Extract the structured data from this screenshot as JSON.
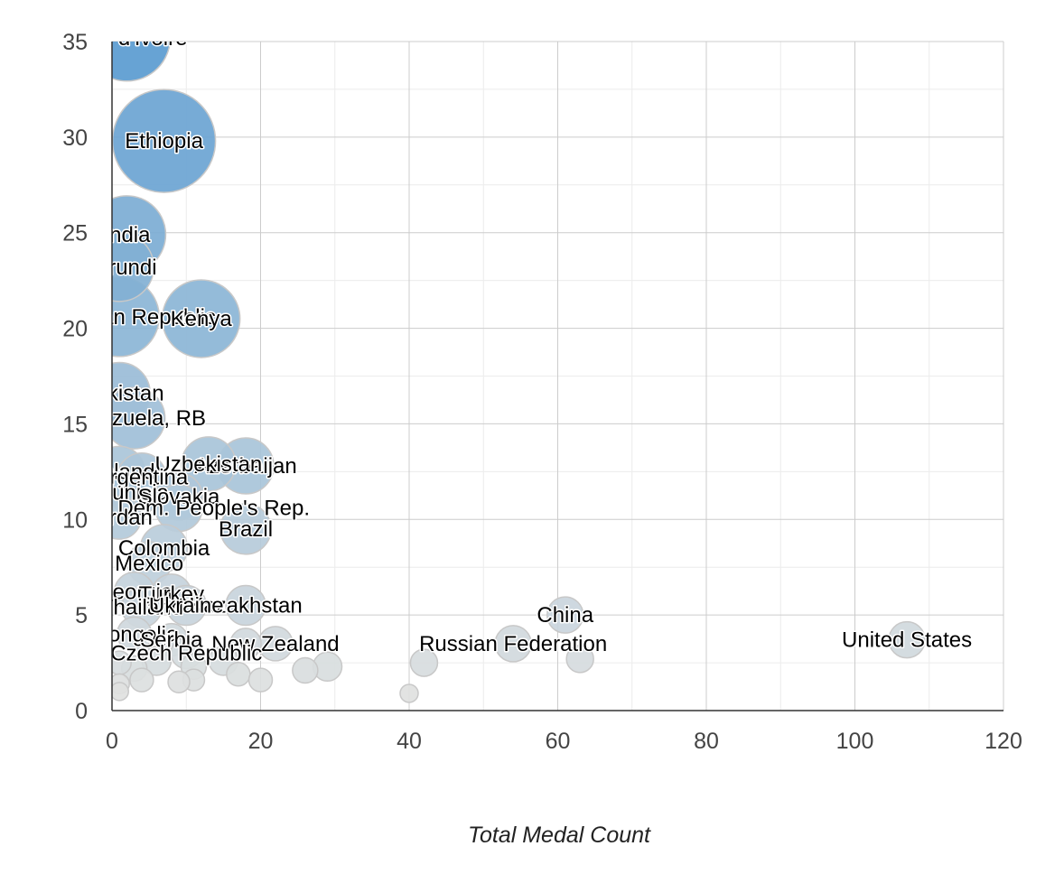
{
  "chart_data": {
    "type": "scatter",
    "variant": "bubble",
    "title": "",
    "xlabel": "Total Medal Count",
    "ylabel": "",
    "xlim": [
      0,
      120
    ],
    "ylim": [
      0,
      35
    ],
    "x_ticks": [
      0,
      20,
      40,
      60,
      80,
      100,
      120
    ],
    "y_ticks": [
      0,
      5,
      10,
      15,
      20,
      25,
      30,
      35
    ],
    "grid": true,
    "legend": "none",
    "color_scale": {
      "low": "#e8e5e0",
      "high": "#5a9bd0",
      "stroke": "#c8c8c8"
    },
    "points": [
      {
        "label": "Cote d'Ivoire",
        "x": 2,
        "y": 35.2,
        "r": 48
      },
      {
        "label": "Ethiopia",
        "x": 7,
        "y": 29.8,
        "r": 57
      },
      {
        "label": "India",
        "x": 2,
        "y": 24.9,
        "r": 43
      },
      {
        "label": "Burundi",
        "x": 1,
        "y": 23.2,
        "r": 38
      },
      {
        "label": "Dominican Republic",
        "x": 1,
        "y": 20.6,
        "r": 44
      },
      {
        "label": "Kenya",
        "x": 12,
        "y": 20.5,
        "r": 43
      },
      {
        "label": "Tajikistan",
        "x": 1,
        "y": 16.6,
        "r": 34
      },
      {
        "label": "Venezuela, RB",
        "x": 3,
        "y": 15.3,
        "r": 34
      },
      {
        "label": "Azerbaijan",
        "x": 18,
        "y": 12.8,
        "r": 31
      },
      {
        "label": "Uzbekistan",
        "x": 13,
        "y": 12.9,
        "r": 30
      },
      {
        "label": "Finland",
        "x": 1,
        "y": 12.5,
        "r": 28
      },
      {
        "label": "Argentina",
        "x": 4,
        "y": 12.2,
        "r": 27
      },
      {
        "label": "Tunisia",
        "x": 3,
        "y": 11.4,
        "r": 27
      },
      {
        "label": "Slovakia",
        "x": 9,
        "y": 11.2,
        "r": 26
      },
      {
        "label": "Korea, Dem. People's Rep.",
        "x": 9,
        "y": 10.6,
        "r": 26
      },
      {
        "label": "Jordan",
        "x": 1,
        "y": 10.1,
        "r": 24
      },
      {
        "label": "Brazil",
        "x": 18,
        "y": 9.5,
        "r": 28
      },
      {
        "label": "Colombia",
        "x": 7,
        "y": 8.5,
        "r": 26
      },
      {
        "label": "Mexico",
        "x": 5,
        "y": 7.7,
        "r": 24
      },
      {
        "label": "Georgia",
        "x": 3,
        "y": 6.2,
        "r": 22
      },
      {
        "label": "Turkey",
        "x": 8,
        "y": 6.1,
        "r": 22
      },
      {
        "label": "Thailand",
        "x": 4,
        "y": 5.4,
        "r": 22
      },
      {
        "label": "Kazakhstan",
        "x": 18,
        "y": 5.5,
        "r": 22
      },
      {
        "label": "Ukraine",
        "x": 10,
        "y": 5.5,
        "r": 22
      },
      {
        "label": "China",
        "x": 61,
        "y": 5.0,
        "r": 20
      },
      {
        "label": "Mongolia",
        "x": 3,
        "y": 4.0,
        "r": 19
      },
      {
        "label": "Serbia",
        "x": 8,
        "y": 3.7,
        "r": 18
      },
      {
        "label": "New Zealand",
        "x": 22,
        "y": 3.5,
        "r": 19
      },
      {
        "label": "Russian Federation",
        "x": 54,
        "y": 3.5,
        "r": 20
      },
      {
        "label": "United States",
        "x": 107,
        "y": 3.7,
        "r": 20
      },
      {
        "label": "Czech Republic",
        "x": 10,
        "y": 3.0,
        "r": 17
      },
      {
        "label": "",
        "x": 18,
        "y": 3.5,
        "r": 17
      },
      {
        "label": "",
        "x": 15,
        "y": 2.6,
        "r": 16
      },
      {
        "label": "",
        "x": 6,
        "y": 2.6,
        "r": 16
      },
      {
        "label": "",
        "x": 29,
        "y": 2.3,
        "r": 16
      },
      {
        "label": "",
        "x": 26,
        "y": 2.1,
        "r": 14
      },
      {
        "label": "",
        "x": 42,
        "y": 2.5,
        "r": 15
      },
      {
        "label": "",
        "x": 63,
        "y": 2.7,
        "r": 15
      },
      {
        "label": "",
        "x": 11,
        "y": 2.3,
        "r": 14
      },
      {
        "label": "",
        "x": 3,
        "y": 2.2,
        "r": 14
      },
      {
        "label": "",
        "x": 1,
        "y": 2.5,
        "r": 13
      },
      {
        "label": "",
        "x": 17,
        "y": 1.9,
        "r": 13
      },
      {
        "label": "",
        "x": 20,
        "y": 1.6,
        "r": 13
      },
      {
        "label": "",
        "x": 11,
        "y": 1.6,
        "r": 12
      },
      {
        "label": "",
        "x": 9,
        "y": 1.5,
        "r": 12
      },
      {
        "label": "",
        "x": 4,
        "y": 1.6,
        "r": 13
      },
      {
        "label": "",
        "x": 1,
        "y": 1.4,
        "r": 11
      },
      {
        "label": "",
        "x": 1,
        "y": 1.0,
        "r": 10
      },
      {
        "label": "",
        "x": 40,
        "y": 0.9,
        "r": 10
      }
    ]
  }
}
